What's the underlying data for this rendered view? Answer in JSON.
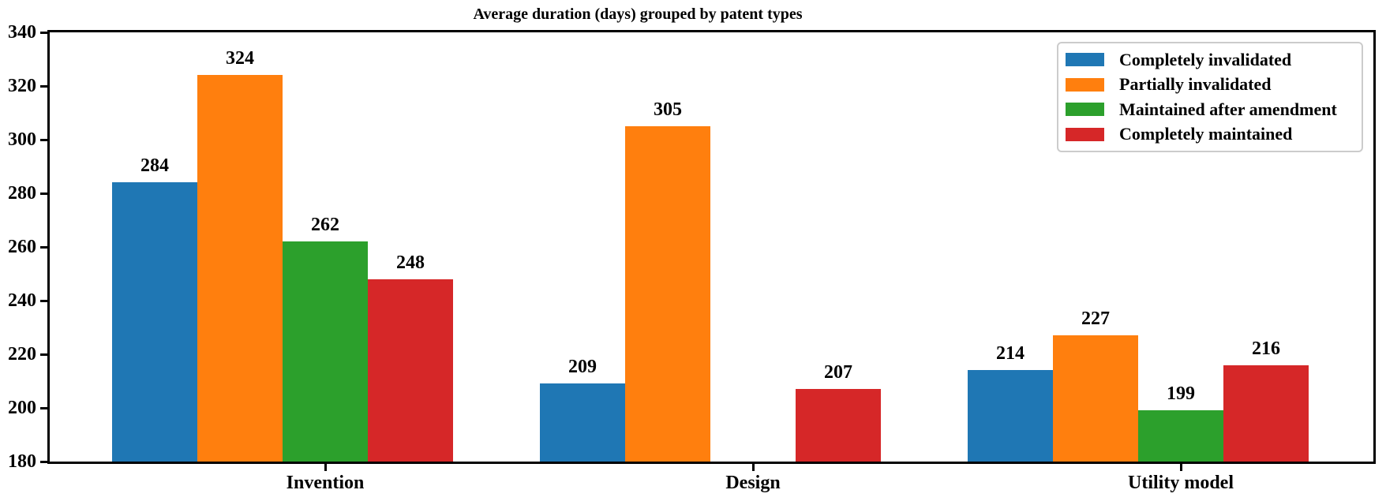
{
  "chart_data": {
    "type": "bar",
    "title": "Average duration (days) grouped by patent types",
    "categories": [
      "Invention",
      "Design",
      "Utility model"
    ],
    "series": [
      {
        "name": "Completely invalidated",
        "color": "#1f77b4",
        "values": [
          284,
          209,
          214
        ]
      },
      {
        "name": "Partially invalidated",
        "color": "#ff7f0e",
        "values": [
          324,
          305,
          227
        ]
      },
      {
        "name": "Maintained after amendment",
        "color": "#2ca02c",
        "values": [
          262,
          null,
          199
        ]
      },
      {
        "name": "Completely maintained",
        "color": "#d62728",
        "values": [
          248,
          207,
          216
        ]
      }
    ],
    "ylim": [
      180,
      340
    ],
    "yticks": [
      180,
      200,
      220,
      240,
      260,
      280,
      300,
      320,
      340
    ],
    "xlabel": "",
    "ylabel": "",
    "grid": false,
    "legend_position": "upper right",
    "bar_value_labels": true
  },
  "colors": {
    "axis_spine": "#000000",
    "legend_border": "#cccccc",
    "background": "#ffffff",
    "text": "#000000"
  }
}
